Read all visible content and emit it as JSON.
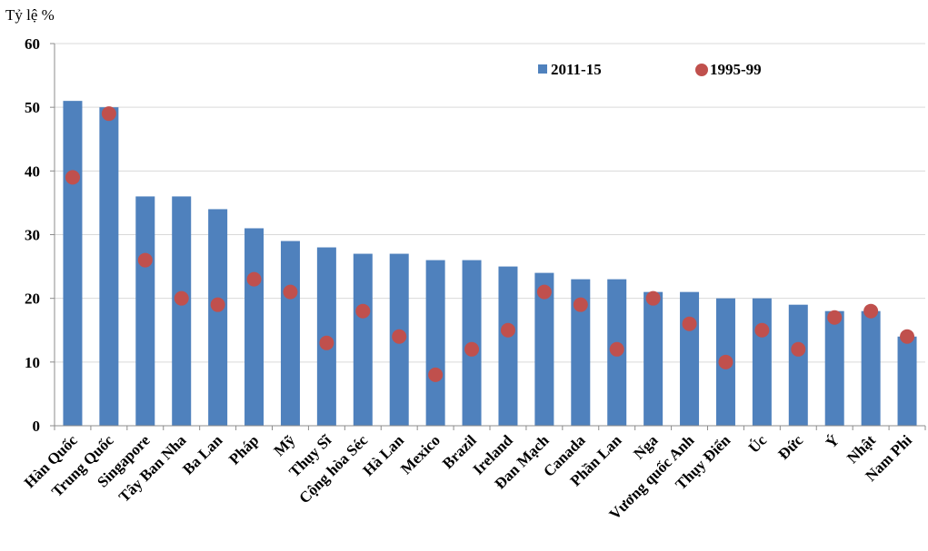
{
  "chart_data": {
    "type": "bar",
    "ylabel": "Tỷ lệ %",
    "ylim": [
      0,
      60
    ],
    "yticks": [
      0,
      10,
      20,
      30,
      40,
      50,
      60
    ],
    "grid": true,
    "legend_position": "top-right",
    "categories": [
      "Hàn Quốc",
      "Trung Quốc",
      "Singapore",
      "Tây Ban Nha",
      "Ba Lan",
      "Pháp",
      "Mỹ",
      "Thụy Sĩ",
      "Cộng hòa Séc",
      "Hà Lan",
      "Mexico",
      "Brazil",
      "Ireland",
      "Đan Mạch",
      "Canada",
      "Phần Lan",
      "Nga",
      "Vương quốc Anh",
      "Thụy Điển",
      "Úc",
      "Đức",
      "Ý",
      "Nhật",
      "Nam Phi"
    ],
    "series": [
      {
        "name": "2011-15",
        "kind": "bar",
        "color": "#4f81bd",
        "values": [
          51,
          50,
          36,
          36,
          34,
          31,
          29,
          28,
          27,
          27,
          26,
          26,
          25,
          24,
          23,
          23,
          21,
          21,
          20,
          20,
          19,
          18,
          18,
          14
        ]
      },
      {
        "name": "1995-99",
        "kind": "dot",
        "color": "#c0504d",
        "values": [
          39,
          49,
          26,
          20,
          19,
          23,
          21,
          13,
          18,
          14,
          8,
          12,
          15,
          21,
          19,
          12,
          20,
          16,
          10,
          15,
          12,
          17,
          18,
          14
        ]
      }
    ]
  }
}
